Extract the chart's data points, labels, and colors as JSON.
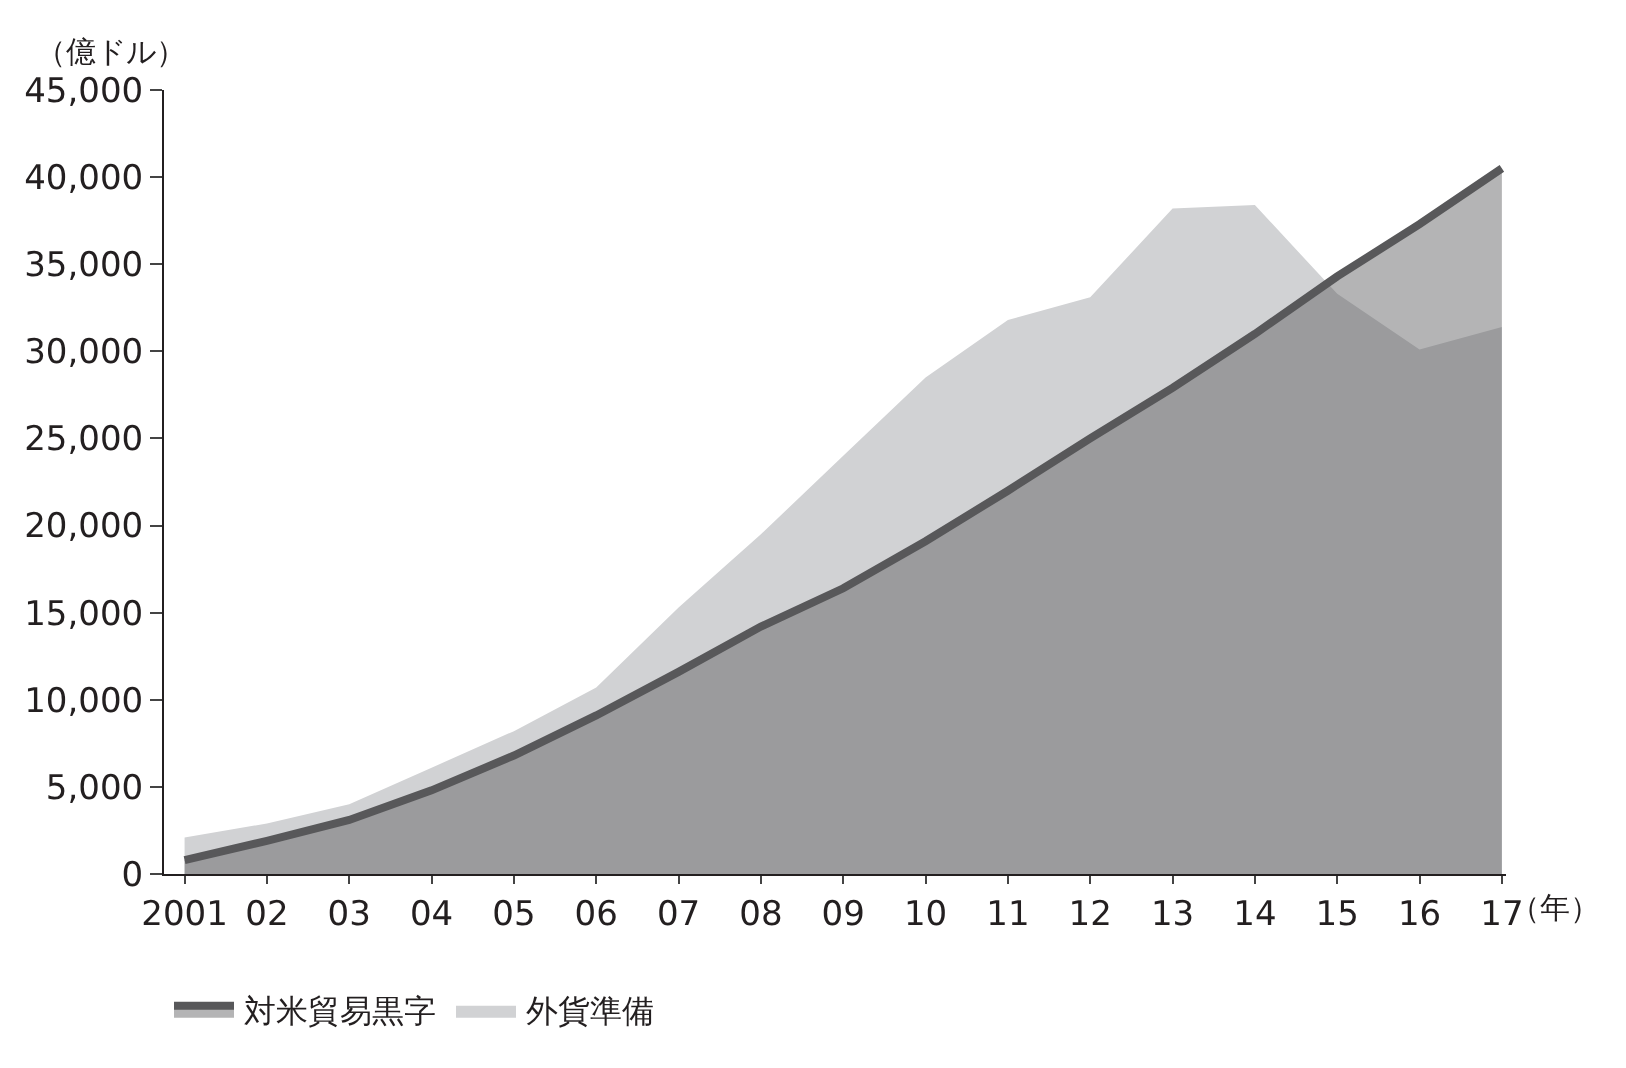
{
  "chart_data": {
    "type": "area",
    "ylabel": "（億ドル）",
    "xlabel": "（年）",
    "categories": [
      "2001",
      "02",
      "03",
      "04",
      "05",
      "06",
      "07",
      "08",
      "09",
      "10",
      "11",
      "12",
      "13",
      "14",
      "15",
      "16",
      "17"
    ],
    "series": [
      {
        "name": "外貨準備",
        "color": "#d1d2d4",
        "values": [
          2100,
          2900,
          4000,
          6100,
          8200,
          10700,
          15300,
          19500,
          24000,
          28500,
          31800,
          33100,
          38200,
          38400,
          33300,
          30100,
          31400
        ]
      },
      {
        "name": "対米貿易黒字",
        "color": "#58585a",
        "values": [
          800,
          1900,
          3100,
          4800,
          6800,
          9100,
          11600,
          14200,
          16400,
          19100,
          22000,
          25000,
          27900,
          31000,
          34300,
          37300,
          40500
        ]
      }
    ],
    "ylim": [
      0,
      45000
    ],
    "yticks": [
      0,
      {
        "value": 5000,
        "label": "5,000"
      },
      {
        "value": 10000,
        "label": "10,000"
      },
      {
        "value": 15000,
        "label": "15,000"
      },
      {
        "value": 20000,
        "label": "20,000"
      },
      {
        "value": 25000,
        "label": "25,000"
      },
      {
        "value": 30000,
        "label": "30,000"
      },
      {
        "value": 35000,
        "label": "35,000"
      },
      {
        "value": 40000,
        "label": "40,000"
      },
      {
        "value": 45000,
        "label": "45,000"
      }
    ],
    "legend": "bottom"
  }
}
